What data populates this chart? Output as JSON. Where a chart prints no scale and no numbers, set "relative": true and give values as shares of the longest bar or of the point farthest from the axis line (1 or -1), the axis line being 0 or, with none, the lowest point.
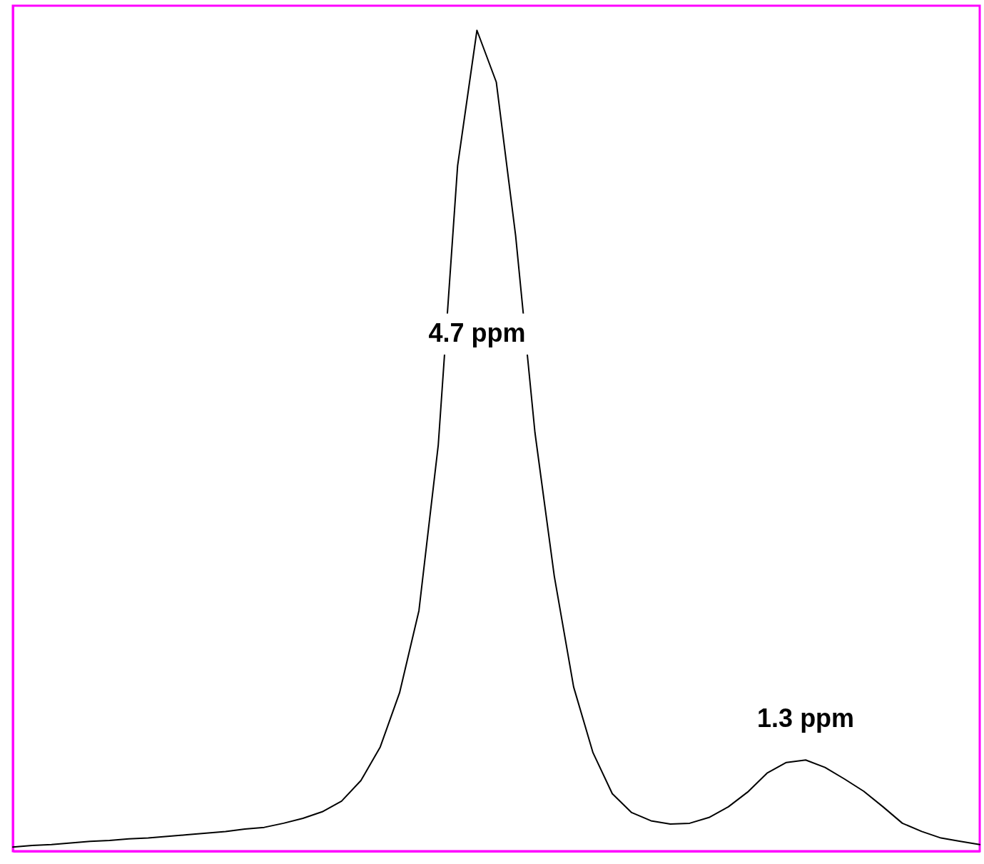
{
  "chart_data": {
    "type": "line",
    "relative": true,
    "grid": false,
    "marker": "none",
    "line_style": "solid",
    "categories": [
      null,
      null,
      null,
      null,
      null,
      null,
      null,
      null,
      null,
      null,
      null,
      null,
      null,
      null,
      null,
      null,
      null,
      null,
      null,
      null,
      null,
      null,
      null,
      null,
      null,
      null,
      null,
      null,
      null,
      null,
      null,
      null,
      null,
      null,
      null,
      null,
      null,
      null,
      null,
      null,
      null,
      null,
      null,
      null,
      null,
      null,
      null,
      null,
      null,
      null,
      null
    ],
    "series": [
      {
        "color": "#000000",
        "values": [
          0.005,
          0.007,
          0.008,
          0.01,
          0.012,
          0.013,
          0.015,
          0.016,
          0.018,
          0.02,
          0.022,
          0.024,
          0.027,
          0.029,
          0.034,
          0.04,
          0.048,
          0.061,
          0.086,
          0.127,
          0.193,
          0.293,
          0.495,
          0.835,
          1.0,
          0.937,
          0.75,
          0.51,
          0.335,
          0.2,
          0.12,
          0.07,
          0.047,
          0.037,
          0.033,
          0.034,
          0.041,
          0.054,
          0.072,
          0.095,
          0.108,
          0.111,
          0.102,
          0.088,
          0.073,
          0.054,
          0.034,
          0.024,
          0.016,
          0.012,
          0.008
        ]
      }
    ],
    "annotations": [
      "4.7 ppm",
      "1.3 ppm"
    ]
  }
}
